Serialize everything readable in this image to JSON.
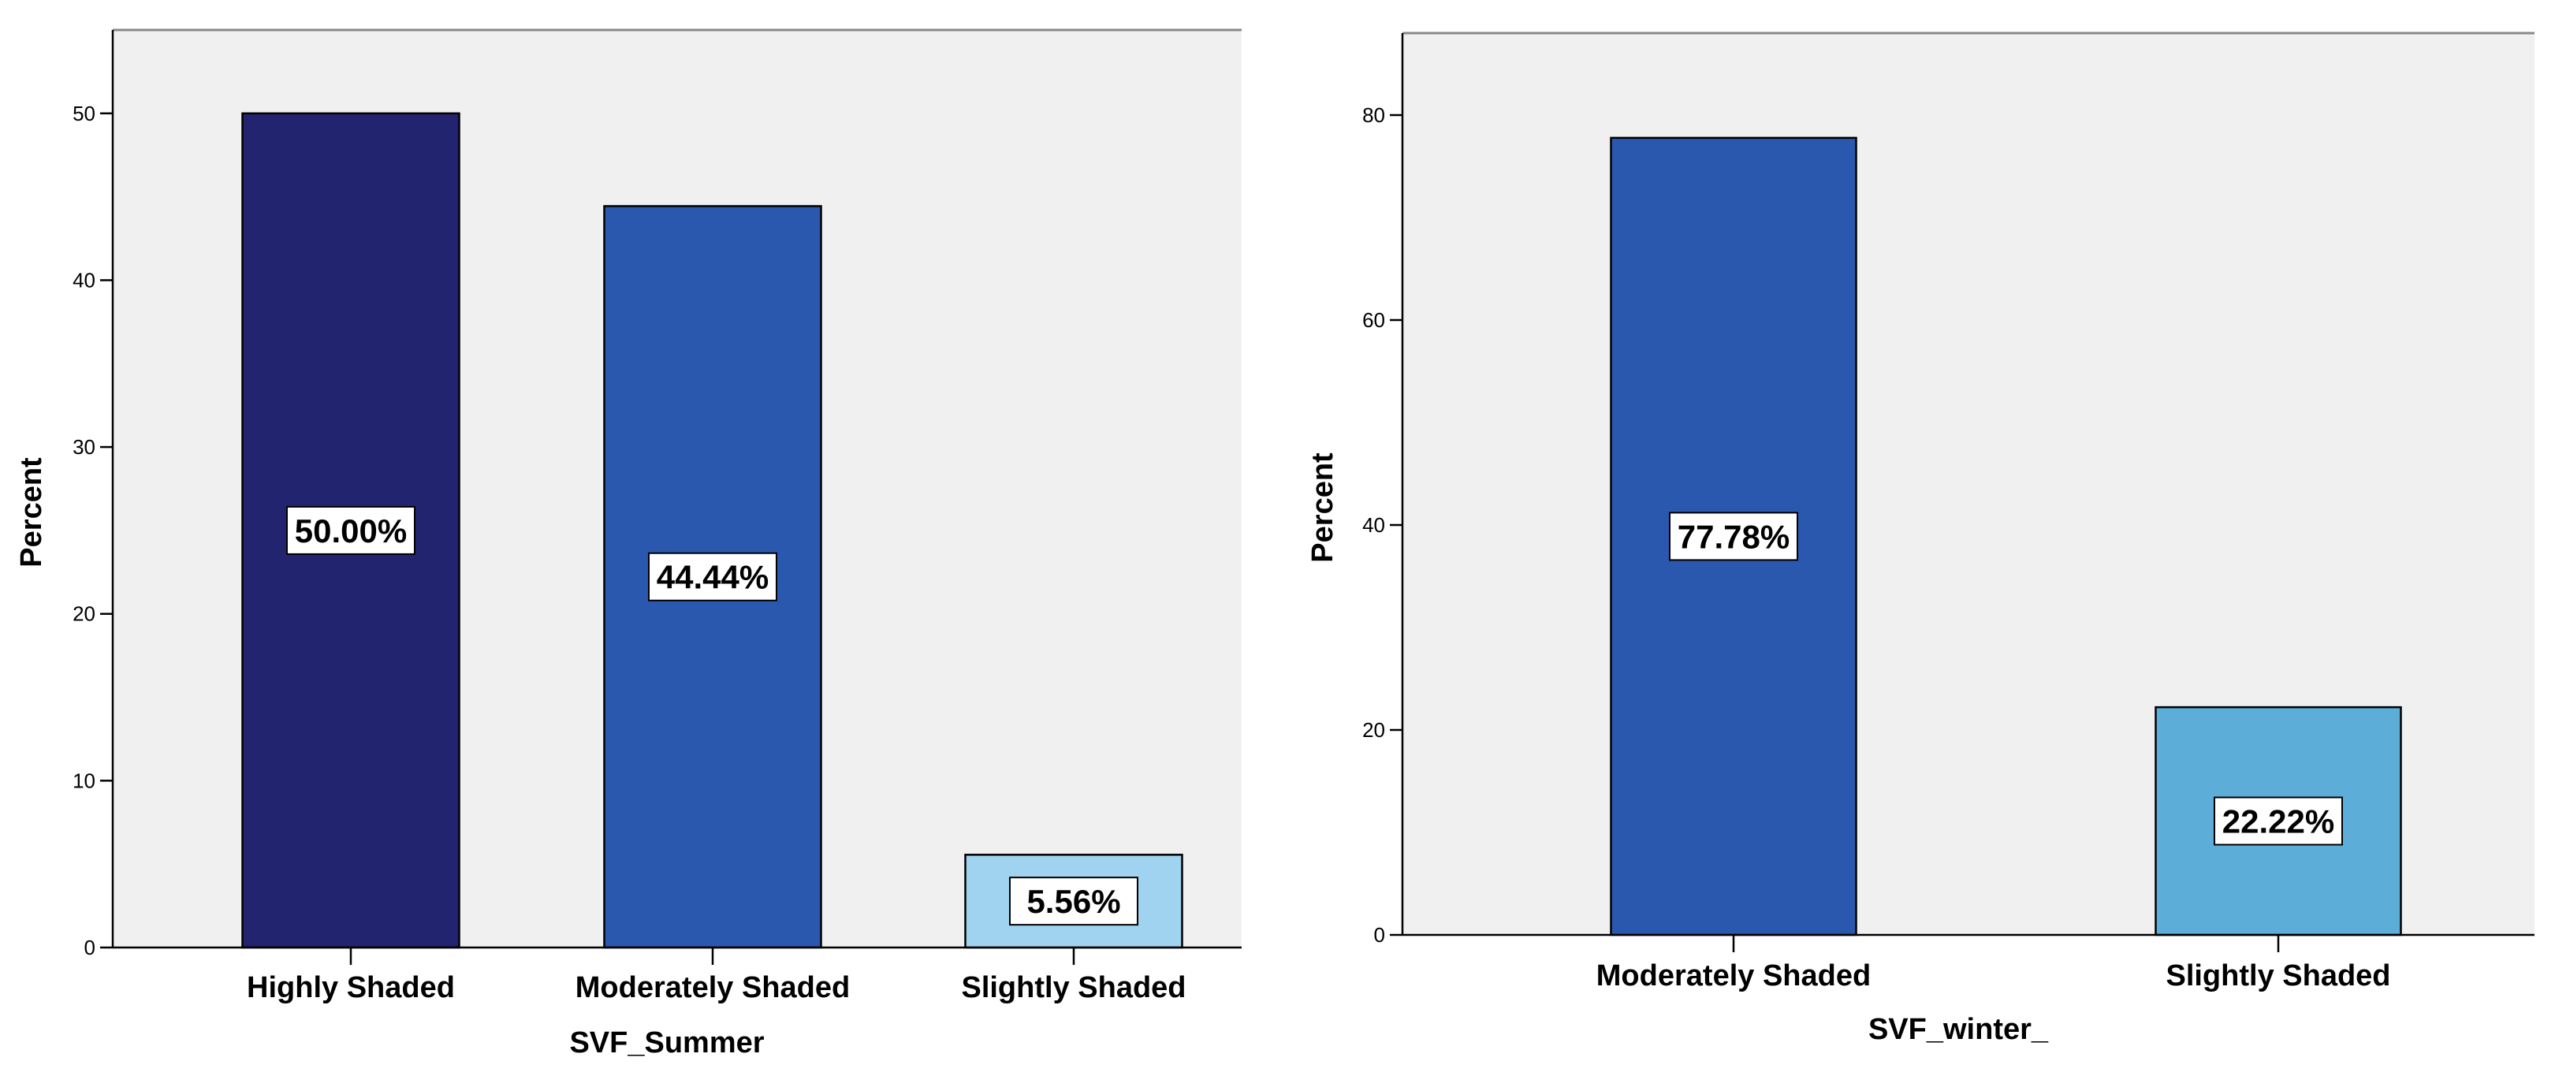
{
  "chart_data": [
    {
      "type": "bar",
      "title": "",
      "xlabel": "SVF_Summer",
      "ylabel": "Percent",
      "ylim": [
        0,
        55
      ],
      "yticks": [
        0,
        10,
        20,
        30,
        40,
        50
      ],
      "categories": [
        "Highly Shaded",
        "Moderately Shaded",
        "Slightly Shaded"
      ],
      "values": [
        50.0,
        44.44,
        5.56
      ],
      "data_labels": [
        "50.00%",
        "44.44%",
        "5.56%"
      ],
      "colors": [
        "#22246f",
        "#2b58af",
        "#9fd3f0"
      ],
      "background": "#f0f0f0",
      "grid": false
    },
    {
      "type": "bar",
      "title": "",
      "xlabel": "SVF_winter_",
      "ylabel": "Percent",
      "ylim": [
        0,
        88
      ],
      "yticks": [
        0,
        20,
        40,
        60,
        80
      ],
      "categories": [
        "Moderately Shaded",
        "Slightly Shaded"
      ],
      "values": [
        77.78,
        22.22
      ],
      "data_labels": [
        "77.78%",
        "22.22%"
      ],
      "colors": [
        "#2b58af",
        "#5caed8"
      ],
      "background": "#f0f0f0",
      "grid": false
    }
  ]
}
